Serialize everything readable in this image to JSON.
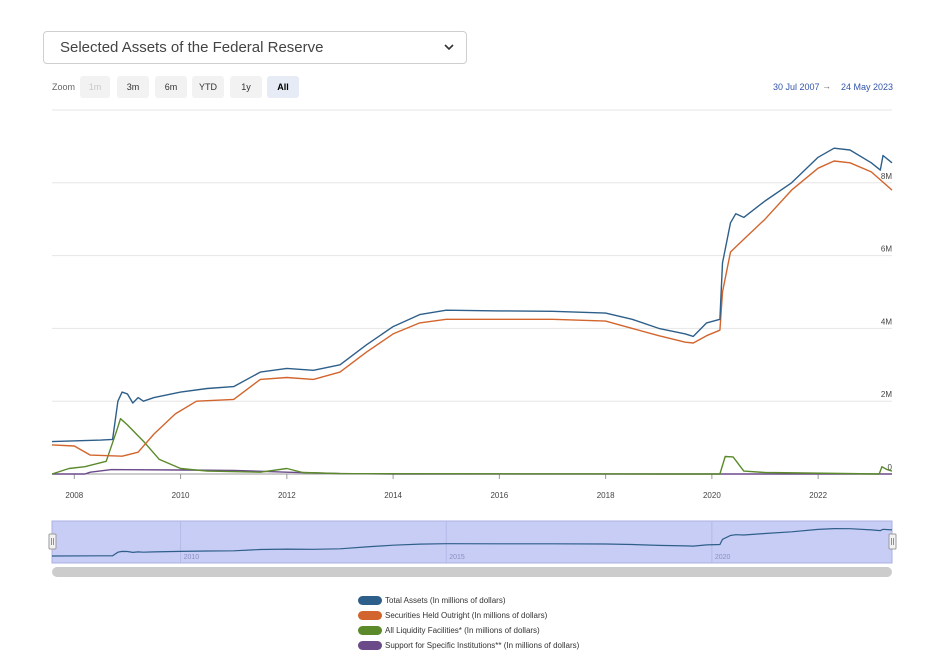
{
  "selector": {
    "selected": "Selected Assets of the Federal Reserve"
  },
  "zoom": {
    "label": "Zoom",
    "buttons": [
      {
        "label": "1m",
        "state": "disabled"
      },
      {
        "label": "3m",
        "state": "normal"
      },
      {
        "label": "6m",
        "state": "normal"
      },
      {
        "label": "YTD",
        "state": "normal"
      },
      {
        "label": "1y",
        "state": "normal"
      },
      {
        "label": "All",
        "state": "active"
      }
    ]
  },
  "range": {
    "from": "30 Jul 2007",
    "arrow": "→",
    "to": "24 May 2023"
  },
  "colors": {
    "total_assets": "#2e5f8a",
    "securities": "#d2652d",
    "liquidity": "#5a8a2a",
    "support": "#6b4a8a",
    "navigator_fill": "#c8cdf5",
    "grid": "#e6e6e6"
  },
  "chart_data": {
    "type": "line",
    "title": "",
    "xlabel": "",
    "ylabel": "",
    "xlim": [
      2007.58,
      2023.39
    ],
    "ylim": [
      0,
      10000000
    ],
    "x_ticks": [
      "2008",
      "2010",
      "2012",
      "2014",
      "2016",
      "2018",
      "2020",
      "2022"
    ],
    "y_ticks": [
      "0",
      "2M",
      "4M",
      "6M",
      "8M"
    ],
    "navigator_ticks": [
      "2010",
      "2015",
      "2020"
    ],
    "legend_position": "bottom-center",
    "series": [
      {
        "name": "Total Assets (In millions of dollars)",
        "color": "#2e5f8a",
        "points": [
          [
            2007.58,
            890000
          ],
          [
            2008.5,
            930000
          ],
          [
            2008.72,
            950000
          ],
          [
            2008.82,
            2000000
          ],
          [
            2008.9,
            2250000
          ],
          [
            2009.0,
            2200000
          ],
          [
            2009.1,
            1950000
          ],
          [
            2009.2,
            2100000
          ],
          [
            2009.3,
            2000000
          ],
          [
            2009.5,
            2100000
          ],
          [
            2010.0,
            2250000
          ],
          [
            2010.5,
            2350000
          ],
          [
            2011.0,
            2400000
          ],
          [
            2011.5,
            2800000
          ],
          [
            2012.0,
            2900000
          ],
          [
            2012.5,
            2850000
          ],
          [
            2013.0,
            3000000
          ],
          [
            2013.5,
            3550000
          ],
          [
            2014.0,
            4050000
          ],
          [
            2014.5,
            4380000
          ],
          [
            2015.0,
            4500000
          ],
          [
            2016.0,
            4480000
          ],
          [
            2017.0,
            4470000
          ],
          [
            2018.0,
            4420000
          ],
          [
            2018.5,
            4250000
          ],
          [
            2019.0,
            4000000
          ],
          [
            2019.5,
            3850000
          ],
          [
            2019.65,
            3780000
          ],
          [
            2019.9,
            4150000
          ],
          [
            2020.15,
            4250000
          ],
          [
            2020.2,
            5800000
          ],
          [
            2020.35,
            6900000
          ],
          [
            2020.45,
            7150000
          ],
          [
            2020.6,
            7050000
          ],
          [
            2021.0,
            7500000
          ],
          [
            2021.5,
            8000000
          ],
          [
            2022.0,
            8700000
          ],
          [
            2022.3,
            8950000
          ],
          [
            2022.6,
            8900000
          ],
          [
            2023.0,
            8550000
          ],
          [
            2023.17,
            8350000
          ],
          [
            2023.22,
            8750000
          ],
          [
            2023.39,
            8550000
          ]
        ]
      },
      {
        "name": "Securities Held Outright (In millions of dollars)",
        "color": "#d2652d",
        "points": [
          [
            2007.58,
            800000
          ],
          [
            2008.0,
            770000
          ],
          [
            2008.3,
            520000
          ],
          [
            2008.9,
            490000
          ],
          [
            2009.2,
            600000
          ],
          [
            2009.5,
            1100000
          ],
          [
            2009.9,
            1650000
          ],
          [
            2010.3,
            2000000
          ],
          [
            2011.0,
            2050000
          ],
          [
            2011.5,
            2600000
          ],
          [
            2012.0,
            2650000
          ],
          [
            2012.5,
            2600000
          ],
          [
            2013.0,
            2800000
          ],
          [
            2013.5,
            3350000
          ],
          [
            2014.0,
            3850000
          ],
          [
            2014.5,
            4150000
          ],
          [
            2015.0,
            4250000
          ],
          [
            2016.0,
            4250000
          ],
          [
            2017.0,
            4250000
          ],
          [
            2018.0,
            4200000
          ],
          [
            2018.5,
            4000000
          ],
          [
            2019.0,
            3800000
          ],
          [
            2019.5,
            3620000
          ],
          [
            2019.65,
            3600000
          ],
          [
            2019.9,
            3800000
          ],
          [
            2020.15,
            3950000
          ],
          [
            2020.2,
            5000000
          ],
          [
            2020.35,
            6100000
          ],
          [
            2020.6,
            6450000
          ],
          [
            2021.0,
            7000000
          ],
          [
            2021.5,
            7800000
          ],
          [
            2022.0,
            8400000
          ],
          [
            2022.3,
            8600000
          ],
          [
            2022.6,
            8550000
          ],
          [
            2023.0,
            8300000
          ],
          [
            2023.39,
            7800000
          ]
        ]
      },
      {
        "name": "All Liquidity Facilities* (In millions of dollars)",
        "color": "#5a8a2a",
        "points": [
          [
            2007.58,
            0
          ],
          [
            2007.9,
            150000
          ],
          [
            2008.2,
            200000
          ],
          [
            2008.6,
            350000
          ],
          [
            2008.8,
            1200000
          ],
          [
            2008.87,
            1520000
          ],
          [
            2009.0,
            1350000
          ],
          [
            2009.3,
            900000
          ],
          [
            2009.6,
            400000
          ],
          [
            2010.0,
            150000
          ],
          [
            2010.5,
            80000
          ],
          [
            2011.5,
            50000
          ],
          [
            2012.0,
            150000
          ],
          [
            2012.3,
            40000
          ],
          [
            2013.0,
            10000
          ],
          [
            2019.0,
            0
          ],
          [
            2020.15,
            0
          ],
          [
            2020.25,
            480000
          ],
          [
            2020.4,
            470000
          ],
          [
            2020.6,
            80000
          ],
          [
            2021.0,
            40000
          ],
          [
            2023.15,
            0
          ],
          [
            2023.2,
            200000
          ],
          [
            2023.3,
            120000
          ],
          [
            2023.39,
            80000
          ]
        ]
      },
      {
        "name": "Support for Specific Institutions** (In millions of dollars)",
        "color": "#6b4a8a",
        "points": [
          [
            2007.58,
            0
          ],
          [
            2008.2,
            0
          ],
          [
            2008.3,
            50000
          ],
          [
            2008.7,
            120000
          ],
          [
            2010.0,
            110000
          ],
          [
            2011.0,
            100000
          ],
          [
            2012.0,
            50000
          ],
          [
            2013.0,
            10000
          ],
          [
            2014.0,
            0
          ],
          [
            2023.39,
            0
          ]
        ]
      }
    ]
  }
}
